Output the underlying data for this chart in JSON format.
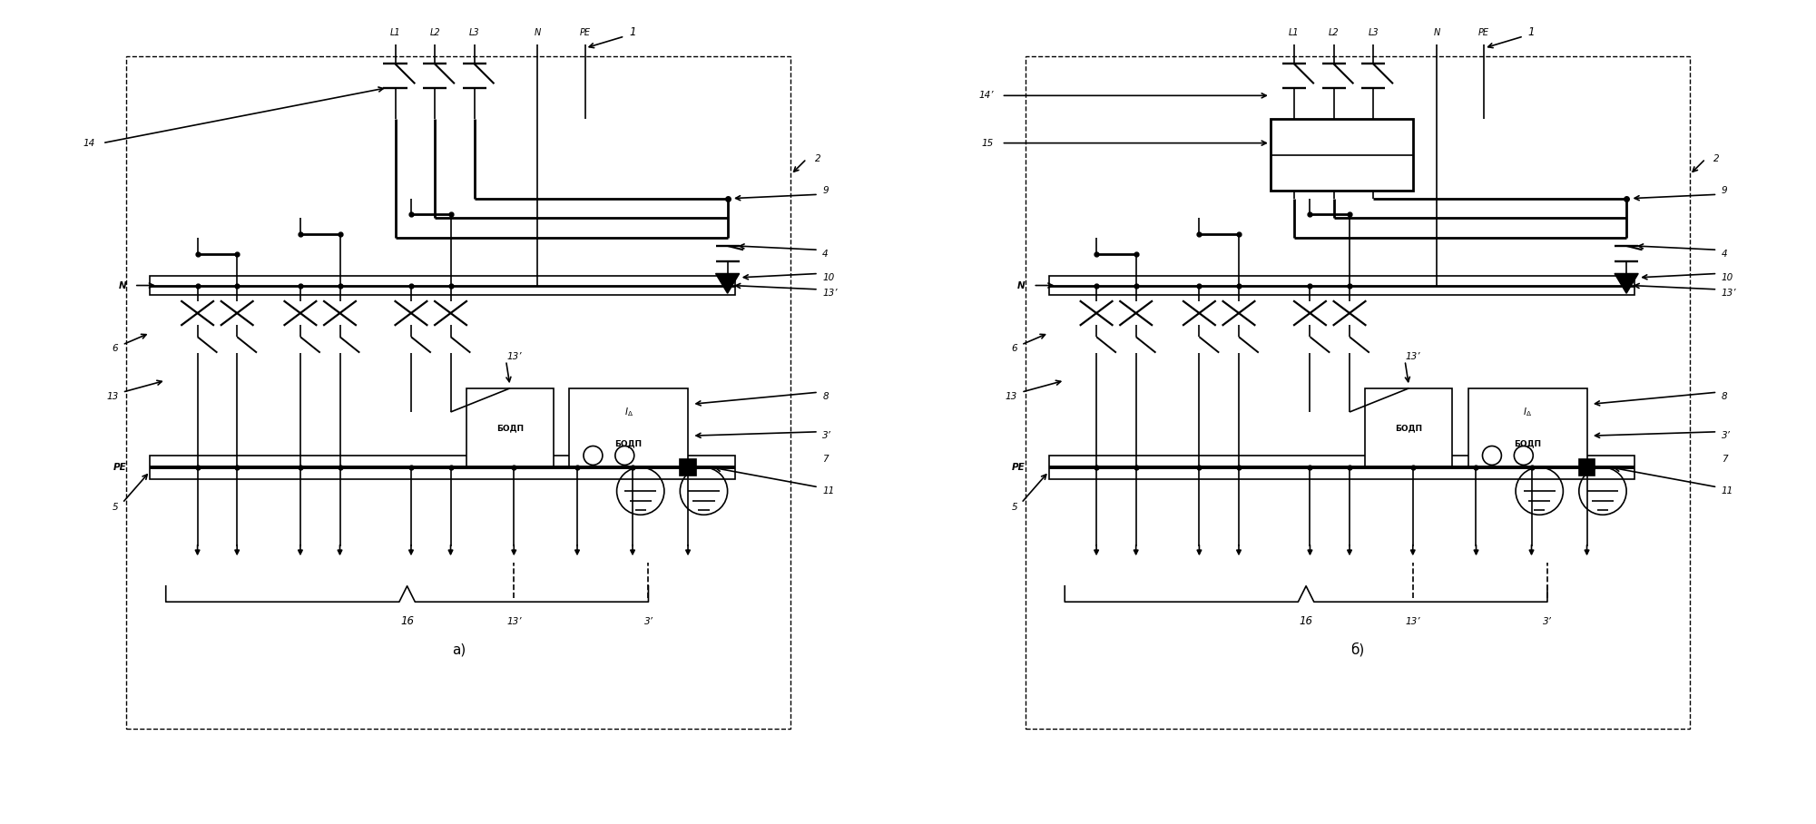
{
  "bg": "#ffffff",
  "lc": "#000000",
  "title_a": "а)",
  "title_b": "б)",
  "fig_w": 20.01,
  "fig_h": 9.08,
  "wire_labels": [
    "L1",
    "L2",
    "L3",
    "N",
    "PE"
  ],
  "label_1": "1",
  "label_2": "2",
  "label_3": "3’",
  "label_4": "4",
  "label_5": "5",
  "label_6": "6",
  "label_7": "7",
  "label_8": "8",
  "label_9": "9",
  "label_10": "10",
  "label_11": "11",
  "label_13": "13",
  "label_13p": "13’",
  "label_14": "14",
  "label_14p": "14’",
  "label_15": "15",
  "label_16": "16",
  "bodp_text": "БОДП",
  "n_label": "N",
  "pe_label": "PE"
}
